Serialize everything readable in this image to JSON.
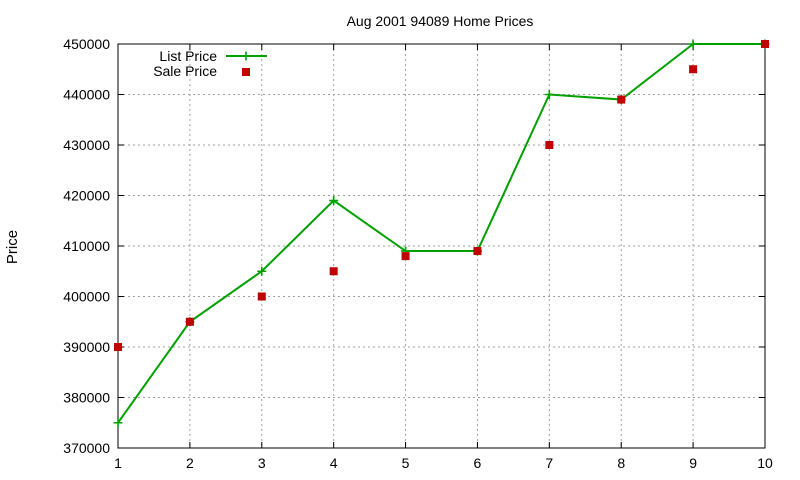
{
  "chart_data": {
    "type": "line",
    "title": "Aug 2001 94089 Home Prices",
    "xlabel": "",
    "ylabel": "Price",
    "x": [
      1,
      2,
      3,
      4,
      5,
      6,
      7,
      8,
      9,
      10
    ],
    "xlim": [
      1,
      10
    ],
    "ylim": [
      370000,
      450000
    ],
    "xticks": [
      1,
      2,
      3,
      4,
      5,
      6,
      7,
      8,
      9,
      10
    ],
    "yticks": [
      370000,
      380000,
      390000,
      400000,
      410000,
      420000,
      430000,
      440000,
      450000
    ],
    "grid": true,
    "legend_position": "top-left",
    "series": [
      {
        "name": "List Price",
        "style": "linespoints",
        "marker": "plus",
        "color": "#00a000",
        "values": [
          375000,
          395000,
          405000,
          419000,
          409000,
          409000,
          440000,
          439000,
          450000,
          450000
        ]
      },
      {
        "name": "Sale Price",
        "style": "points",
        "marker": "square",
        "color": "#c00000",
        "values": [
          390000,
          395000,
          400000,
          405000,
          408000,
          409000,
          430000,
          439000,
          445000,
          450000
        ]
      }
    ]
  }
}
